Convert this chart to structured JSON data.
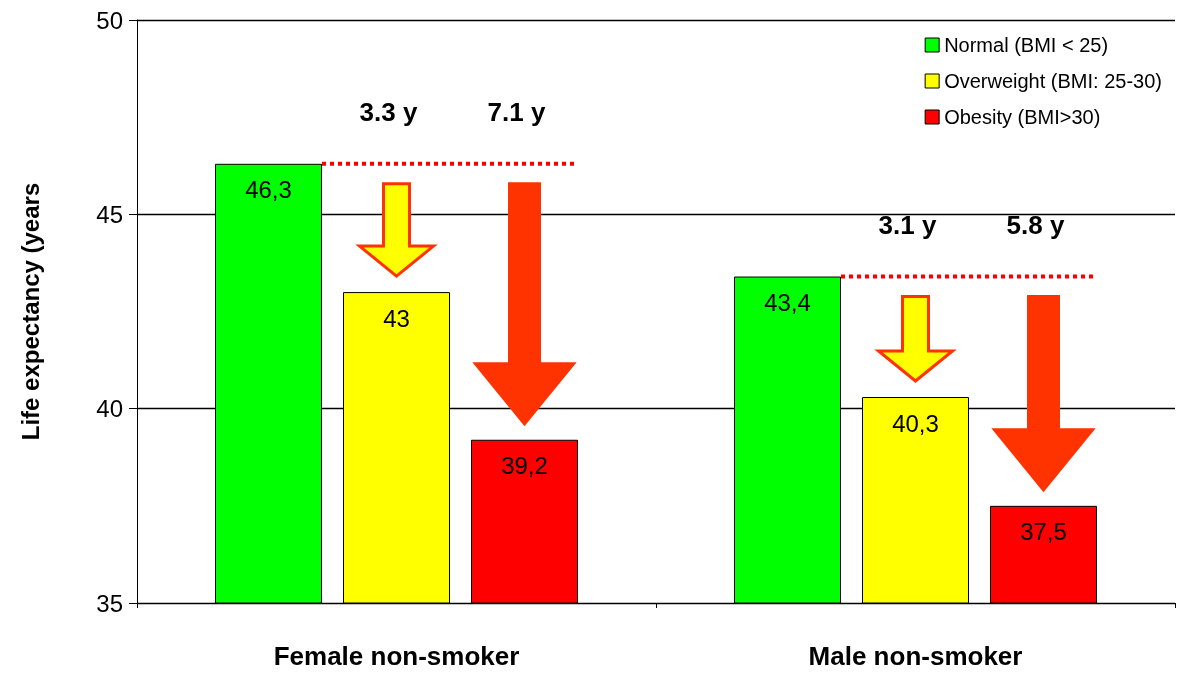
{
  "chart_data": {
    "type": "bar",
    "ylabel": "Life expectancy (years",
    "categories": [
      "Female non-smoker",
      "Male non-smoker"
    ],
    "series": [
      {
        "name": "Normal (BMI < 25)",
        "color": "#00ff00",
        "values": [
          46.3,
          43.4
        ],
        "value_labels": [
          "46,3",
          "43,4"
        ]
      },
      {
        "name": "Overweight (BMI: 25-30)",
        "color": "#ffff00",
        "values": [
          43,
          40.3
        ],
        "value_labels": [
          "43",
          "40,3"
        ]
      },
      {
        "name": "Obesity (BMI>30)",
        "color": "#ff0000",
        "values": [
          39.2,
          37.5
        ],
        "value_labels": [
          "39,2",
          "37,5"
        ]
      }
    ],
    "ylim": [
      35,
      50
    ],
    "yticks": [
      35,
      40,
      45,
      50
    ],
    "grid": "y",
    "legend": "top right",
    "ref_lines": [
      {
        "axis": "y",
        "value": 46.3,
        "color": "#ff0000",
        "line_style": "dotted"
      },
      {
        "axis": "y",
        "value": 43.4,
        "color": "#ff0000",
        "line_style": "dotted"
      }
    ],
    "annotations": [
      "3.3 y",
      "7.1 y",
      "3.1 y",
      "5.8 y"
    ]
  }
}
